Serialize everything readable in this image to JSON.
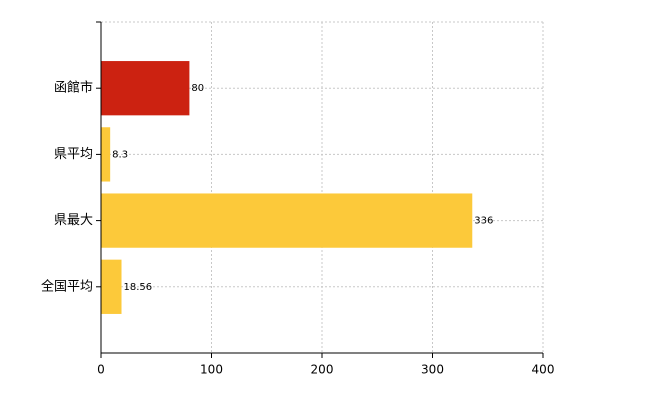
{
  "chart_data": {
    "type": "bar",
    "orientation": "horizontal",
    "categories": [
      "函館市",
      "県平均",
      "県最大",
      "全国平均"
    ],
    "values": [
      80,
      8.3,
      336,
      18.56
    ],
    "colors": [
      "#cc2211",
      "#fcc93a",
      "#fcc93a",
      "#fcc93a"
    ],
    "xlim": [
      0,
      400
    ],
    "xticks": [
      0,
      100,
      200,
      300,
      400
    ],
    "grid": true
  }
}
